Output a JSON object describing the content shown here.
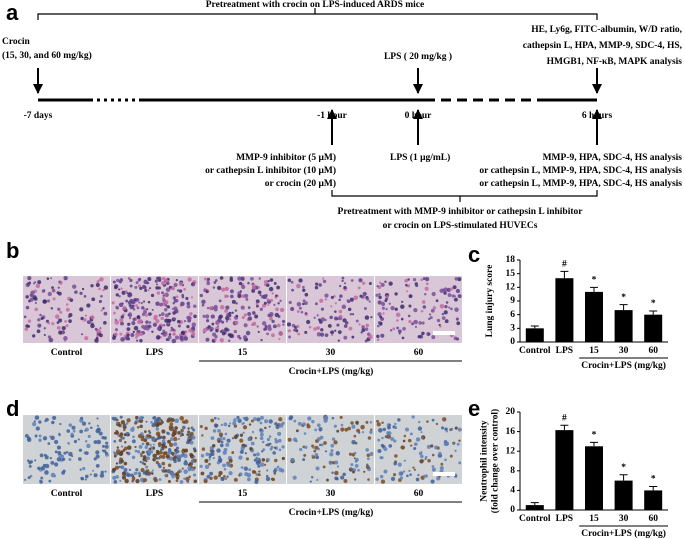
{
  "panel_labels": [
    "a",
    "b",
    "c",
    "d",
    "e"
  ],
  "timeline": {
    "title": "Pretreatment with crocin on LPS-induced ARDS mice",
    "crocin": [
      "Crocin",
      "(15, 30, and 60 mg/kg)"
    ],
    "lps_mice": "LPS ( 20 mg/kg )",
    "mice_analysis": [
      "HE, Ly6g, FITC-albumin, W/D ratio,",
      "cathepsin L, HPA, MMP-9, SDC-4, HS,",
      "HMGB1, NF-κB, MAPK analysis"
    ],
    "timepoints": [
      "-7 days",
      "-1 hour",
      "0 hour",
      "6 hours"
    ],
    "inhibitors": [
      "MMP-9 inhibitor (5 μM)",
      "or cathepsin L inhibitor (10 μM)",
      "or crocin (20 μM)"
    ],
    "lps_cells": "LPS (1 μg/mL)",
    "cell_analysis": [
      "MMP-9, HPA, SDC-4, HS analysis",
      "or cathepsin L, MMP-9, HPA, SDC-4, HS analysis",
      "or cathepsin L, MMP-9, HPA, SDC-4, HS analysis"
    ],
    "cell_title": [
      "Pretreatment with MMP-9 inhibitor or cathepsin L inhibitor",
      "or crocin on LPS-stimulated HUVECs"
    ]
  },
  "micrographs": [
    {
      "labels": [
        "Control",
        "LPS",
        "15",
        "30",
        "60"
      ],
      "group": "Crocin+LPS (mg/kg)"
    },
    {
      "labels": [
        "Control",
        "LPS",
        "15",
        "30",
        "60"
      ],
      "group": "Crocin+LPS (mg/kg)"
    }
  ],
  "chart_data": [
    {
      "type": "bar",
      "ylabel": [
        "Lung injury score"
      ],
      "categories": [
        "Control",
        "LPS",
        "15",
        "30",
        "60"
      ],
      "values": [
        3,
        14,
        11,
        7,
        6
      ],
      "errors": [
        0.5,
        1.5,
        1,
        1.2,
        0.8
      ],
      "markers": [
        null,
        "#",
        "*",
        "*",
        "*"
      ],
      "group_label": "Crocin+LPS (mg/kg)",
      "color": "#000000",
      "ylim": [
        0,
        18
      ],
      "yticks": [
        0,
        3,
        6,
        9,
        12,
        15,
        18
      ]
    },
    {
      "type": "bar",
      "ylabel": [
        "Neutrophil intensity",
        "(fold change over control)"
      ],
      "categories": [
        "Control",
        "LPS",
        "15",
        "30",
        "60"
      ],
      "values": [
        1,
        16.3,
        13,
        6,
        4
      ],
      "errors": [
        0.5,
        1,
        0.8,
        1.2,
        0.8
      ],
      "markers": [
        null,
        "#",
        "*",
        "*",
        "*"
      ],
      "group_label": "Crocin+LPS (mg/kg)",
      "color": "#000000",
      "ylim": [
        0,
        20
      ],
      "yticks": [
        0,
        4,
        8,
        12,
        16,
        20
      ]
    }
  ]
}
